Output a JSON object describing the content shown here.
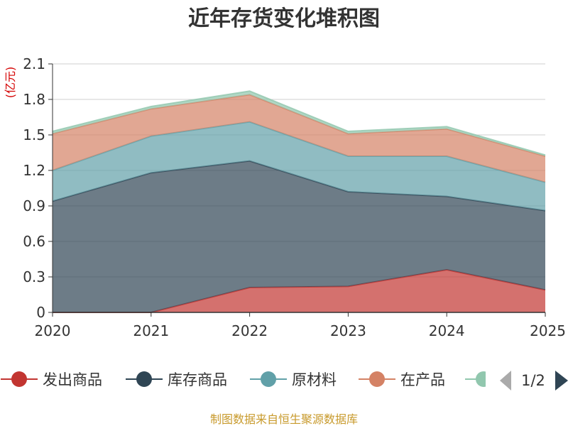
{
  "chart_data": {
    "type": "area",
    "stacked": true,
    "title": "近年存货变化堆积图",
    "unit_label": "(亿元)",
    "x": [
      "2020",
      "2021",
      "2022",
      "2023",
      "2024",
      "2025"
    ],
    "y_ticks": [
      "0",
      "0.3",
      "0.6",
      "0.9",
      "1.2",
      "1.5",
      "1.8",
      "2.1"
    ],
    "ylim": [
      0,
      2.1
    ],
    "grid": true,
    "legend_position": "bottom",
    "series": [
      {
        "name": "发出商品",
        "color": "#c23531",
        "values": [
          0,
          0,
          0.21,
          0.22,
          0.36,
          0.19
        ]
      },
      {
        "name": "库存商品",
        "color": "#2f4554",
        "values": [
          0.94,
          1.18,
          1.07,
          0.8,
          0.62,
          0.67
        ]
      },
      {
        "name": "原材料",
        "color": "#61a0a8",
        "values": [
          0.26,
          0.31,
          0.33,
          0.3,
          0.34,
          0.24
        ]
      },
      {
        "name": "在产品",
        "color": "#d48265",
        "values": [
          0.31,
          0.23,
          0.23,
          0.19,
          0.23,
          0.22
        ]
      },
      {
        "name": "",
        "color": "#91c7ae",
        "values": [
          0.02,
          0.02,
          0.03,
          0.02,
          0.02,
          0.01
        ]
      }
    ],
    "legend_page": "1/2",
    "source_note": "制图数据来自恒生聚源数据库"
  }
}
